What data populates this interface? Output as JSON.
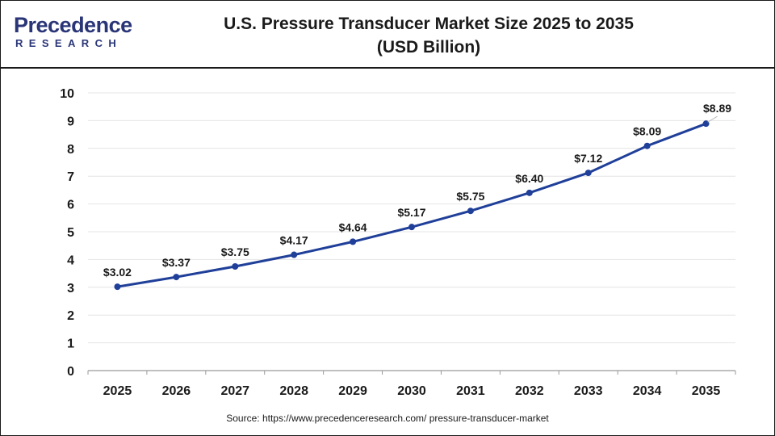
{
  "logo": {
    "brand_name": "Precedence",
    "brand_sub": "RESEARCH"
  },
  "header": {
    "title_line1": "U.S. Pressure Transducer Market Size 2025 to 2035",
    "title_line2": "(USD Billion)"
  },
  "footer": {
    "source": "Source: https://www.precedenceresearch.com/ pressure-transducer-market"
  },
  "colors": {
    "line": "#1f3f99",
    "grid": "#e4e4e4",
    "text": "#1a1a1a",
    "brand": "#2a3577"
  },
  "chart_data": {
    "type": "line",
    "title": "U.S. Pressure Transducer Market Size 2025 to 2035",
    "subtitle": "(USD Billion)",
    "xlabel": "",
    "ylabel": "",
    "categories": [
      "2025",
      "2026",
      "2027",
      "2028",
      "2029",
      "2030",
      "2031",
      "2032",
      "2033",
      "2034",
      "2035"
    ],
    "series": [
      {
        "values": [
          3.02,
          3.37,
          3.75,
          4.17,
          4.64,
          5.17,
          5.75,
          6.4,
          7.12,
          8.09,
          8.89
        ],
        "labels": [
          "$3.02",
          "$3.37",
          "$3.75",
          "$4.17",
          "$4.64",
          "$5.17",
          "$5.75",
          "$6.40",
          "$7.12",
          "$8.09",
          "$8.89"
        ]
      }
    ],
    "ylim": [
      0,
      10
    ],
    "yticks": [
      "0",
      "1",
      "2",
      "3",
      "4",
      "5",
      "6",
      "7",
      "8",
      "9",
      "10"
    ],
    "grid": true,
    "legend": "none"
  }
}
